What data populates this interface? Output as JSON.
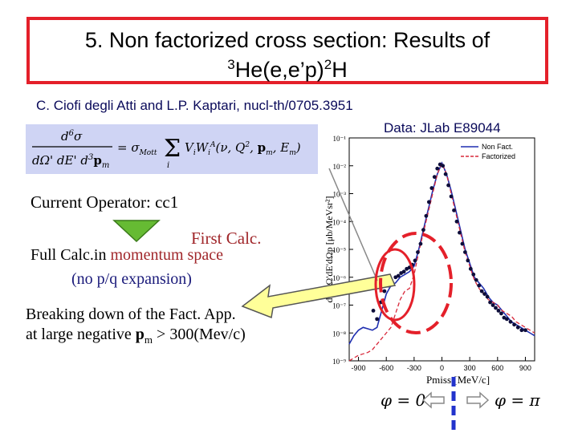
{
  "title": {
    "line1": "5. Non factorized cross section: Results of",
    "line2_sup1": "3",
    "line2_mid": "He(e,e’p)",
    "line2_sup2": "2",
    "line2_end": "H"
  },
  "authors": "C. Ciofi degli Atti and L.P. Kaptari, nucl-th/0705.3951",
  "data_ref": "Data: JLab E89044",
  "formula_equals": "= σMott Σ ViWiA(ν, Q², pm, Em)",
  "current_operator": "Current Operator: cc1",
  "first_calc": "First Calc.",
  "full_calc_prefix": "Full Calc.in ",
  "full_calc_highlight": "momentum space",
  "pq_expansion": "(no p/q expansion)",
  "breaking_line1": "Breaking down of the Fact. App.",
  "breaking_line2_prefix": "at large negative ",
  "breaking_line2_bold": "p",
  "breaking_line2_sub": "m",
  "breaking_line2_suffix": " > 300(Mev/c)",
  "phi_left": "φ = 0",
  "phi_right": "φ = π",
  "colors": {
    "title_border": "#e4202a",
    "formula_bg": "#cfd4f4",
    "nonfact_line": "#1f2fb0",
    "fact_line": "#d8283a",
    "data_points": "#0d0d3a",
    "arrow_fill": "#ffff99",
    "green_arrow": "#66bb33",
    "ellipse": "#e4202a",
    "divider": "#2233cc"
  },
  "chart_data": {
    "type": "line",
    "ylabel": "dσ/dΩ'dE'dΩp [μb/MeVsr²]",
    "xlabel": "Pmiss [MeV/c]",
    "x_tick_labels": [
      "-900",
      "-600",
      "-300",
      "0",
      "300",
      "600",
      "900"
    ],
    "y_tick_labels": [
      "10⁻¹",
      "10⁻²",
      "10⁻³",
      "10⁻⁴",
      "10⁻⁵",
      "10⁻⁶",
      "10⁻⁷",
      "10⁻⁸",
      "10⁻⁹"
    ],
    "xlim": [
      -1000,
      1000
    ],
    "ylim_log10": [
      -9,
      -1
    ],
    "legend_position": "top-right",
    "legend": [
      "Non Fact.",
      "Factorized"
    ],
    "series": [
      {
        "name": "Non Fact.",
        "x": [
          -1000,
          -950,
          -900,
          -850,
          -800,
          -750,
          -700,
          -650,
          -600,
          -550,
          -500,
          -450,
          -400,
          -350,
          -300,
          -250,
          -200,
          -150,
          -100,
          -50,
          0,
          50,
          100,
          150,
          200,
          250,
          300,
          350,
          400,
          450,
          500,
          550,
          600,
          650,
          700,
          750,
          800,
          850,
          900,
          950,
          1000
        ],
        "log10_y": [
          -8.4,
          -8.1,
          -7.9,
          -7.8,
          -7.85,
          -7.9,
          -7.8,
          -7.2,
          -6.6,
          -6.3,
          -6.2,
          -6.0,
          -5.9,
          -5.8,
          -5.6,
          -5.0,
          -4.3,
          -3.6,
          -2.9,
          -2.3,
          -1.9,
          -2.3,
          -2.9,
          -3.6,
          -4.3,
          -5.0,
          -5.5,
          -6.0,
          -6.2,
          -6.4,
          -6.7,
          -6.9,
          -7.0,
          -7.2,
          -7.4,
          -7.6,
          -7.7,
          -7.8,
          -7.9,
          -8.0,
          -8.1
        ]
      },
      {
        "name": "Factorized",
        "x": [
          -1000,
          -950,
          -900,
          -850,
          -800,
          -750,
          -700,
          -650,
          -600,
          -550,
          -500,
          -450,
          -400,
          -350,
          -300,
          -250,
          -200,
          -150,
          -100,
          -50,
          0,
          50,
          100,
          150,
          200,
          250,
          300,
          350,
          400,
          450,
          500,
          550,
          600,
          650,
          700,
          750,
          800,
          850,
          900,
          950,
          1000
        ],
        "log10_y": [
          -9.0,
          -8.9,
          -8.8,
          -8.75,
          -8.7,
          -8.6,
          -8.4,
          -8.2,
          -8.0,
          -7.8,
          -7.3,
          -6.8,
          -6.5,
          -6.4,
          -5.9,
          -5.1,
          -4.4,
          -3.7,
          -3.0,
          -2.3,
          -1.9,
          -2.3,
          -3.0,
          -3.7,
          -4.4,
          -5.1,
          -5.6,
          -6.1,
          -6.4,
          -6.6,
          -6.8,
          -6.9,
          -7.0,
          -7.2,
          -7.3,
          -7.4,
          -7.6,
          -7.7,
          -7.8,
          -7.9,
          -8.0
        ]
      },
      {
        "name": "Data",
        "x": [
          -740,
          -700,
          -660,
          -620,
          -580,
          -540,
          -500,
          -470,
          -440,
          -410,
          -380,
          -350,
          -320,
          -290,
          -260,
          -230,
          -200,
          -170,
          -140,
          -110,
          -80,
          -50,
          -20,
          10,
          40,
          70,
          100,
          130,
          160,
          190,
          220,
          250,
          280,
          310,
          340,
          370,
          400,
          430,
          460,
          490,
          520,
          550,
          580,
          610,
          640,
          670,
          700,
          740,
          780,
          820,
          860,
          900
        ],
        "log10_y": [
          -7.2,
          -7.5,
          -6.9,
          -6.5,
          -6.3,
          -6.2,
          -6.0,
          -5.95,
          -5.85,
          -5.8,
          -5.7,
          -5.65,
          -5.55,
          -5.4,
          -5.1,
          -4.8,
          -4.3,
          -3.8,
          -3.3,
          -2.8,
          -2.4,
          -2.1,
          -1.95,
          -2.0,
          -2.3,
          -2.7,
          -3.1,
          -3.6,
          -4.0,
          -4.4,
          -4.8,
          -5.1,
          -5.4,
          -5.7,
          -5.9,
          -6.1,
          -6.3,
          -6.5,
          -6.6,
          -6.7,
          -6.9,
          -7.0,
          -7.1,
          -7.2,
          -7.3,
          -7.45,
          -7.5,
          -7.6,
          -7.7,
          -7.8,
          -7.9,
          -7.9
        ]
      }
    ]
  }
}
